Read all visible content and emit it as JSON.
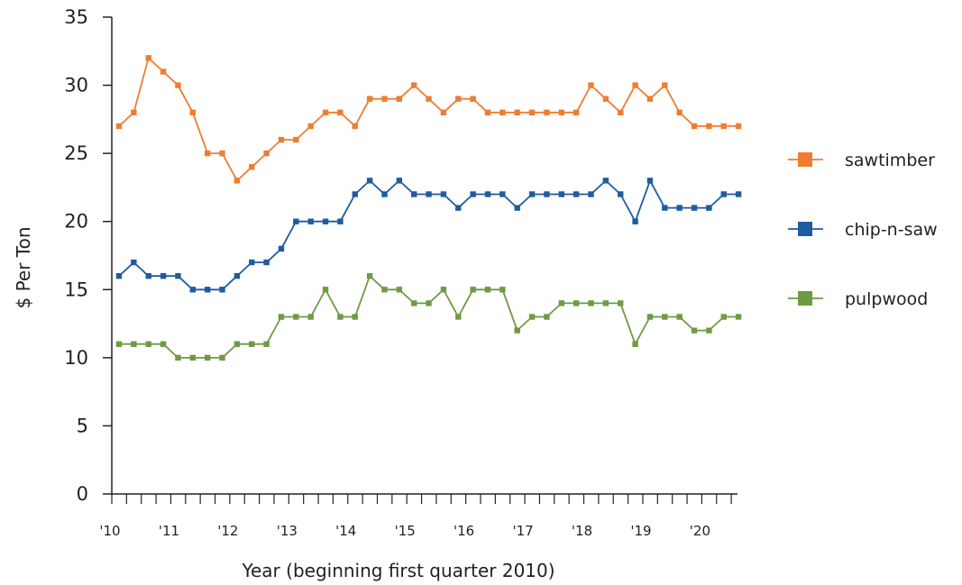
{
  "chart_data": {
    "type": "line",
    "xlabel": "Year (beginning first quarter 2010)",
    "ylabel": "$ Per Ton",
    "ylim": [
      0,
      35
    ],
    "yticks": [
      "0",
      "5",
      "10",
      "15",
      "20",
      "25",
      "30",
      "35"
    ],
    "xticks": [
      "'10",
      "'11",
      "'12",
      "'13",
      "'14",
      "'15",
      "'16",
      "'17",
      "'18",
      "'19",
      "'20"
    ],
    "grid": false,
    "legend_position": "right",
    "quarters": 43,
    "series": [
      {
        "name": "sawtimber",
        "color": "#ef7d31",
        "values": [
          27,
          28,
          32,
          31,
          30,
          28,
          25,
          25,
          23,
          24,
          25,
          26,
          26,
          27,
          28,
          28,
          27,
          29,
          29,
          29,
          30,
          29,
          28,
          29,
          29,
          28,
          28,
          28,
          28,
          28,
          28,
          28,
          30,
          29,
          28,
          30,
          29,
          30,
          28,
          27,
          27,
          27,
          27
        ]
      },
      {
        "name": "chip-n-saw",
        "color": "#1f5ba0",
        "values": [
          16,
          17,
          16,
          16,
          16,
          15,
          15,
          15,
          16,
          17,
          17,
          18,
          20,
          20,
          20,
          20,
          22,
          23,
          22,
          23,
          22,
          22,
          22,
          21,
          22,
          22,
          22,
          21,
          22,
          22,
          22,
          22,
          22,
          23,
          22,
          20,
          23,
          21,
          21,
          21,
          21,
          22,
          22
        ]
      },
      {
        "name": "pulpwood",
        "color": "#6f9a44",
        "values": [
          11,
          11,
          11,
          11,
          10,
          10,
          10,
          10,
          11,
          11,
          11,
          13,
          13,
          13,
          15,
          13,
          13,
          16,
          15,
          15,
          14,
          14,
          15,
          13,
          15,
          15,
          15,
          12,
          13,
          13,
          14,
          14,
          14,
          14,
          14,
          11,
          13,
          13,
          13,
          12,
          12,
          13,
          13
        ]
      }
    ]
  }
}
